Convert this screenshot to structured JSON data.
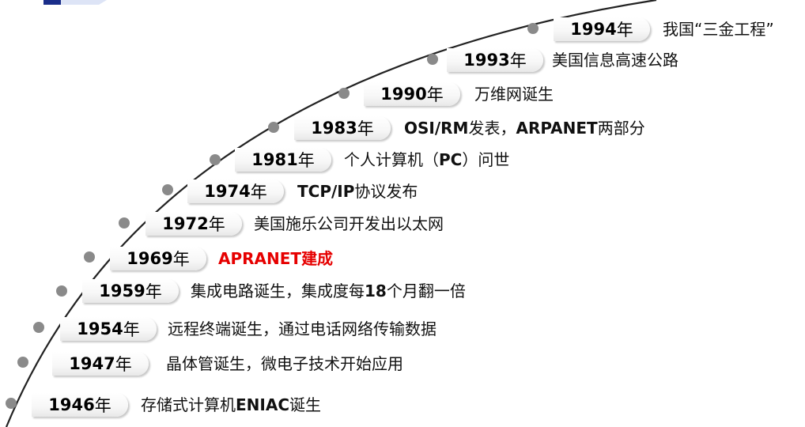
{
  "timeline": {
    "curve_color": "#222222",
    "dot_color": "#8a8a8a",
    "highlight_color": "#e60000",
    "events": [
      {
        "year": "1946",
        "unit": "年",
        "desc": "存储式计算机ENIAC诞生",
        "highlight": false
      },
      {
        "year": "1947",
        "unit": "年",
        "desc": "晶体管诞生，微电子技术开始应用",
        "highlight": false
      },
      {
        "year": "1954",
        "unit": "年",
        "desc": "远程终端诞生，通过电话网络传输数据",
        "highlight": false
      },
      {
        "year": "1959",
        "unit": "年",
        "desc": "集成电路诞生，集成度每18个月翻一倍",
        "highlight": false
      },
      {
        "year": "1969",
        "unit": "年",
        "desc": "APRANET建成",
        "highlight": true
      },
      {
        "year": "1972",
        "unit": "年",
        "desc": "美国施乐公司开发出以太网",
        "highlight": false
      },
      {
        "year": "1974",
        "unit": "年",
        "desc": "TCP/IP协议发布",
        "highlight": false
      },
      {
        "year": "1981",
        "unit": "年",
        "desc": "个人计算机（PC）问世",
        "highlight": false
      },
      {
        "year": "1983",
        "unit": "年",
        "desc": "OSI/RM发表，ARPANET两部分",
        "highlight": false
      },
      {
        "year": "1990",
        "unit": "年",
        "desc": "万维网诞生",
        "highlight": false
      },
      {
        "year": "1993",
        "unit": "年",
        "desc": "美国信息高速公路",
        "highlight": false
      },
      {
        "year": "1994",
        "unit": "年",
        "desc": "我国“三金工程”",
        "highlight": false
      }
    ]
  }
}
